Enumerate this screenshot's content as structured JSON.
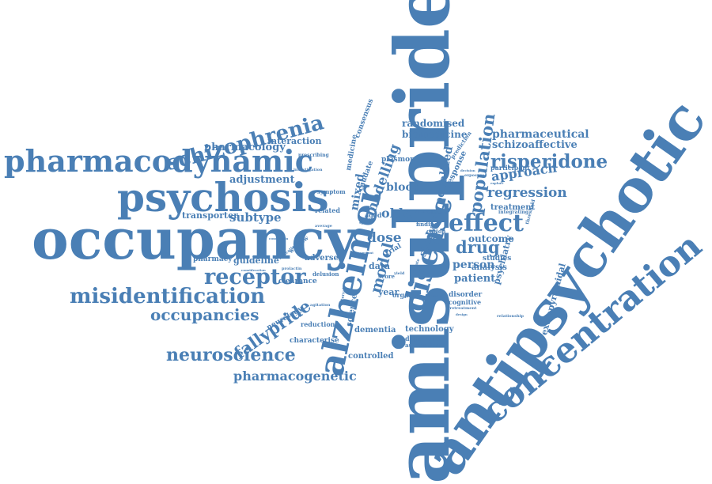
{
  "color": "#4a7fb5",
  "words": [
    {
      "text": "amisulpride"
    },
    {
      "text": "antipsychotic"
    },
    {
      "text": "concentration"
    },
    {
      "text": "occupancy"
    },
    {
      "text": "alzheimer"
    },
    {
      "text": "psychosis"
    },
    {
      "text": "pharmacodynamic"
    },
    {
      "text": "disease"
    },
    {
      "text": "schizophrenia"
    },
    {
      "text": "misidentification"
    },
    {
      "text": "receptor"
    },
    {
      "text": "neuroscience"
    },
    {
      "text": "occupancies"
    },
    {
      "text": "effect"
    },
    {
      "text": "population"
    },
    {
      "text": "risperidone"
    },
    {
      "text": "fallypride"
    },
    {
      "text": "pharmacogenetic"
    },
    {
      "text": "drug"
    },
    {
      "text": "regression"
    },
    {
      "text": "approach"
    },
    {
      "text": "pharmacology"
    },
    {
      "text": "adjustment"
    },
    {
      "text": "interaction"
    },
    {
      "text": "subtype"
    },
    {
      "text": "transporter"
    },
    {
      "text": "model"
    },
    {
      "text": "modelling"
    },
    {
      "text": "mixed"
    },
    {
      "text": "penalized"
    },
    {
      "text": "dose"
    },
    {
      "text": "older"
    },
    {
      "text": "blood"
    },
    {
      "text": "study"
    },
    {
      "text": "person"
    },
    {
      "text": "patient"
    },
    {
      "text": "outcome"
    },
    {
      "text": "analysis"
    },
    {
      "text": "studies"
    },
    {
      "text": "treatment"
    },
    {
      "text": "extrapyramidal"
    },
    {
      "text": "psychiatry"
    },
    {
      "text": "pharmaceutical"
    },
    {
      "text": "schizoaffective"
    },
    {
      "text": "randomised"
    },
    {
      "text": "biomedicine"
    },
    {
      "text": "guideline"
    },
    {
      "text": "pharmacy"
    },
    {
      "text": "clearance"
    },
    {
      "text": "adverse"
    },
    {
      "text": "delusion"
    },
    {
      "text": "reduction"
    },
    {
      "text": "characterise"
    },
    {
      "text": "controlled"
    },
    {
      "text": "dementia"
    },
    {
      "text": "technology"
    },
    {
      "text": "dopamine"
    },
    {
      "text": "association"
    },
    {
      "text": "cognitive"
    },
    {
      "text": "disorder"
    },
    {
      "text": "data"
    },
    {
      "text": "year"
    },
    {
      "text": "organic"
    },
    {
      "text": "science"
    },
    {
      "text": "neurology"
    },
    {
      "text": "consensus"
    },
    {
      "text": "medicine"
    },
    {
      "text": "caudate"
    },
    {
      "text": "response"
    },
    {
      "text": "plasmon"
    },
    {
      "text": "participant"
    },
    {
      "text": "related"
    },
    {
      "text": "symptom"
    },
    {
      "text": "aged"
    },
    {
      "text": "prescribing"
    },
    {
      "text": "integrating"
    },
    {
      "text": "threshold"
    },
    {
      "text": "finding"
    },
    {
      "text": "cation"
    },
    {
      "text": "prediction"
    },
    {
      "text": "trial"
    },
    {
      "text": "score"
    },
    {
      "text": "window"
    },
    {
      "text": "agitation"
    },
    {
      "text": "indication"
    },
    {
      "text": "favoured"
    },
    {
      "text": "objective"
    },
    {
      "text": "investigation"
    },
    {
      "text": "relationship"
    },
    {
      "text": "healthy"
    },
    {
      "text": "average"
    },
    {
      "text": "consideration"
    },
    {
      "text": "conclusion"
    },
    {
      "text": "update"
    },
    {
      "text": "pretreatment"
    },
    {
      "text": "exposure"
    },
    {
      "text": "spray"
    },
    {
      "text": "prolactin"
    },
    {
      "text": "interval"
    },
    {
      "text": "yield"
    },
    {
      "text": "design"
    },
    {
      "text": "decision"
    },
    {
      "text": "explore"
    },
    {
      "text": "amount"
    }
  ]
}
